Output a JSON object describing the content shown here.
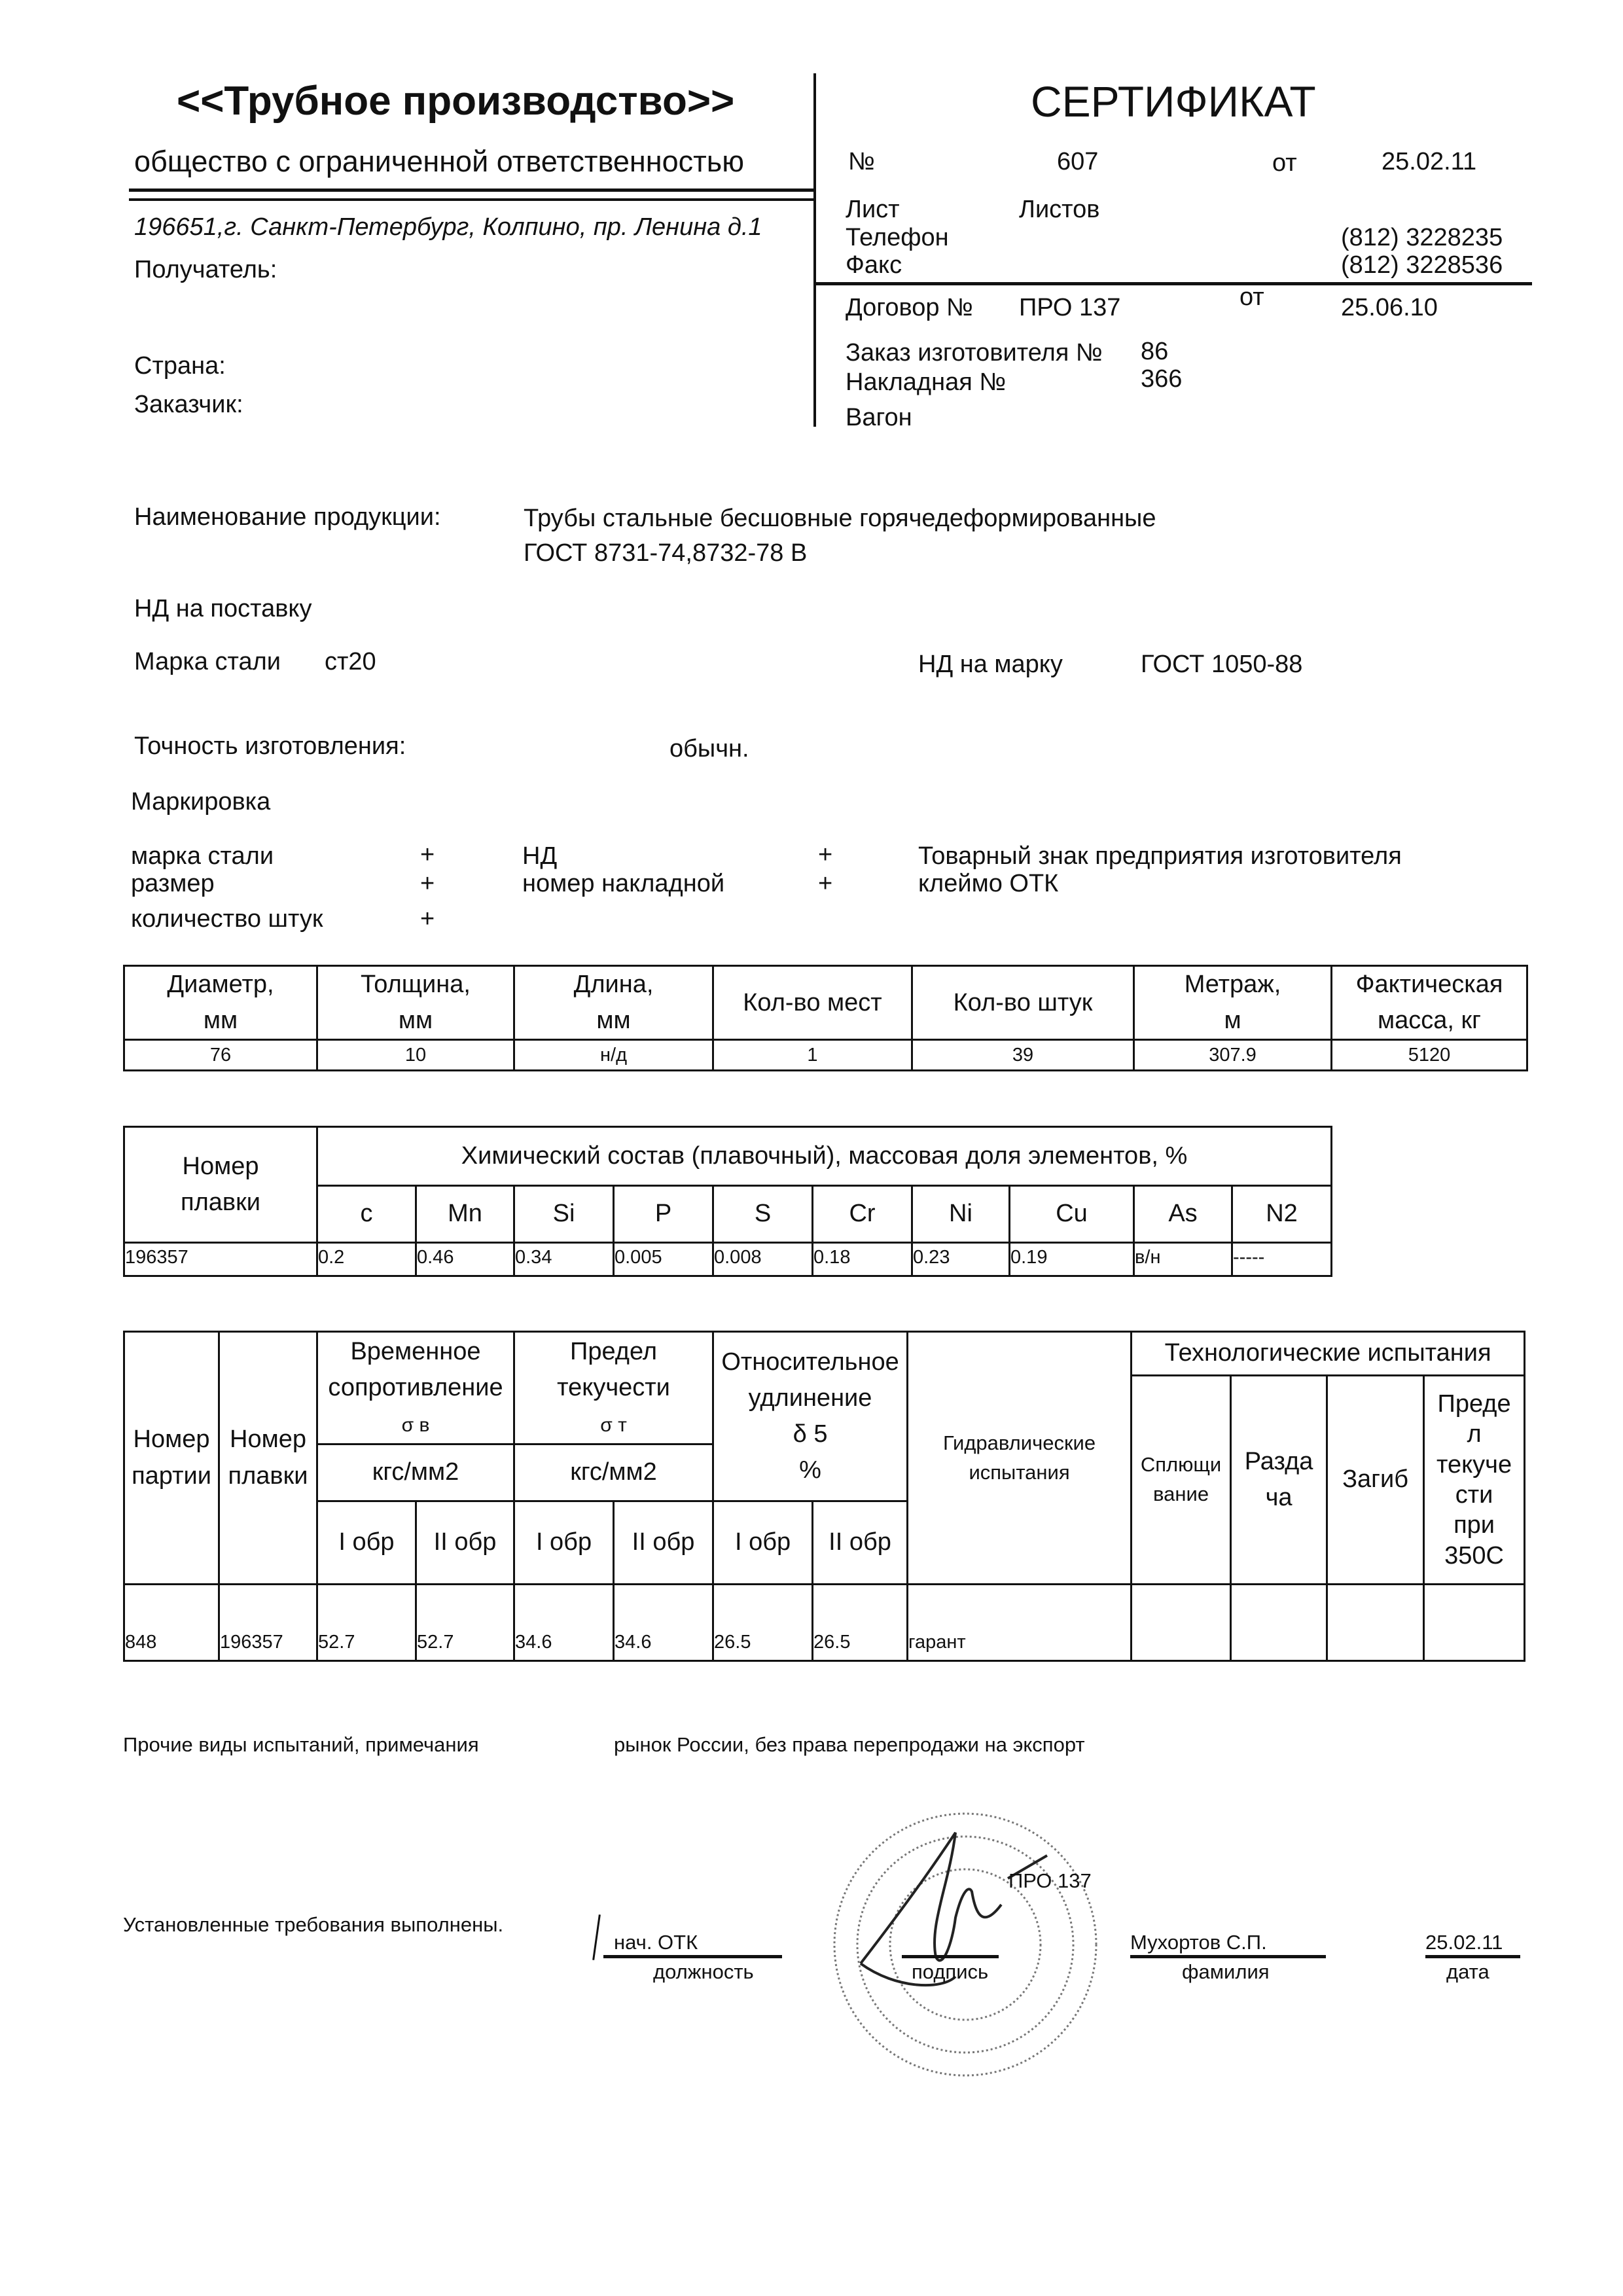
{
  "company": {
    "name": "<<Трубное производство>>",
    "legal_form": "общество с ограниченной ответственностью",
    "address": "196651,г. Санкт-Петербург, Колпино, пр. Ленина д.1"
  },
  "recipient": {
    "recipient_label": "Получатель:",
    "country_label": "Страна:",
    "customer_label": "Заказчик:"
  },
  "certificate": {
    "title": "СЕРТИФИКАТ",
    "number_label": "№",
    "number": "607",
    "from_label": "от",
    "date": "25.02.11",
    "sheet_label": "Лист",
    "sheets_label": "Листов",
    "phone_label": "Телефон",
    "phone": "(812) 3228235",
    "fax_label": "Факс",
    "fax": "(812) 3228536",
    "contract_label": "Договор №",
    "contract": "ПРО 137",
    "contract_from_label": "от",
    "contract_date": "25.06.10",
    "order_label": "Заказ изготовителя №",
    "order": "86",
    "invoice_label": "Накладная №",
    "invoice": "366",
    "wagon_label": "Вагон"
  },
  "product": {
    "name_label": "Наименование продукции:",
    "name_line1": "Трубы стальные бесшовные горячедеформированные",
    "name_line2": "ГОСТ 8731-74,8732-78 В",
    "nd_supply_label": "НД на поставку",
    "steel_label": "Марка стали",
    "steel": "ст20",
    "nd_grade_label": "НД на марку",
    "nd_grade": "ГОСТ  1050-88",
    "accuracy_label": "Точность изготовления:",
    "accuracy": "обычн.",
    "marking_label": "Маркировка",
    "marking": [
      {
        "label": "марка стали",
        "mark": "+"
      },
      {
        "label": "размер",
        "mark": "+"
      },
      {
        "label": "количество штук",
        "mark": "+"
      },
      {
        "label": "НД",
        "mark": "+"
      },
      {
        "label": "номер накладной",
        "mark": "+"
      },
      {
        "label": "Товарный знак предприятия изготовителя"
      },
      {
        "label": "клеймо ОТК"
      }
    ]
  },
  "dimensions_table": {
    "headers": [
      "Диаметр,",
      "мм",
      "Толщина,",
      "мм",
      "Длина,",
      "мм",
      "Кол-во мест",
      "Кол-во штук",
      "Метраж,",
      "м",
      "Фактическая",
      "масса, кг"
    ],
    "row": [
      "76",
      "10",
      "н/д",
      "1",
      "39",
      "307.9",
      "5120"
    ]
  },
  "chemistry_table": {
    "heat_header_1": "Номер",
    "heat_header_2": "плавки",
    "title": "Химический состав (плавочный), массовая доля элементов, %",
    "elements": [
      "c",
      "Mn",
      "Si",
      "P",
      "S",
      "Cr",
      "Ni",
      "Cu",
      "As",
      "N2"
    ],
    "row": [
      "196357",
      "0.2",
      "0.46",
      "0.34",
      "0.005",
      "0.008",
      "0.18",
      "0.23",
      "0.19",
      "в/н",
      "-----"
    ]
  },
  "mechanical_table": {
    "batch_header": [
      "Номер",
      "партии"
    ],
    "heat_header": [
      "Номер",
      "плавки"
    ],
    "tensile": [
      "Временное",
      "сопротивление",
      "σ в"
    ],
    "yield": [
      "Предел",
      "текучести",
      "σ т"
    ],
    "elongation": [
      "Относительное",
      "удлинение",
      "δ 5",
      "%"
    ],
    "unit": "кгс/мм2",
    "sample1": "I обр",
    "sample2": "II обр",
    "hydraulic": [
      "Гидравлические",
      "испытания"
    ],
    "tech_title": "Технологические испытания",
    "tech_cols": [
      [
        "Сплющи",
        "вание"
      ],
      [
        "Разда",
        "ча"
      ],
      [
        "Загиб"
      ],
      [
        "Преде",
        "л",
        "текуче",
        "сти",
        "при",
        "350С"
      ]
    ],
    "row": [
      "848",
      "196357",
      "52.7",
      "52.7",
      "34.6",
      "34.6",
      "26.5",
      "26.5",
      "гарант",
      "",
      "",
      "",
      ""
    ]
  },
  "footer": {
    "other_tests_label": "Прочие виды испытаний, примечания",
    "other_tests": "рынок  России, без права перепродажи на экспорт",
    "requirements": "Установленные требования выполнены.",
    "position": "нач. ОТК",
    "position_label": "должность",
    "signature_label": "подпись",
    "surname": "Мухортов С.П.",
    "surname_label": "фамилия",
    "date": "25.02.11",
    "date_label": "дата",
    "stamp_text": "ПРО 137"
  }
}
